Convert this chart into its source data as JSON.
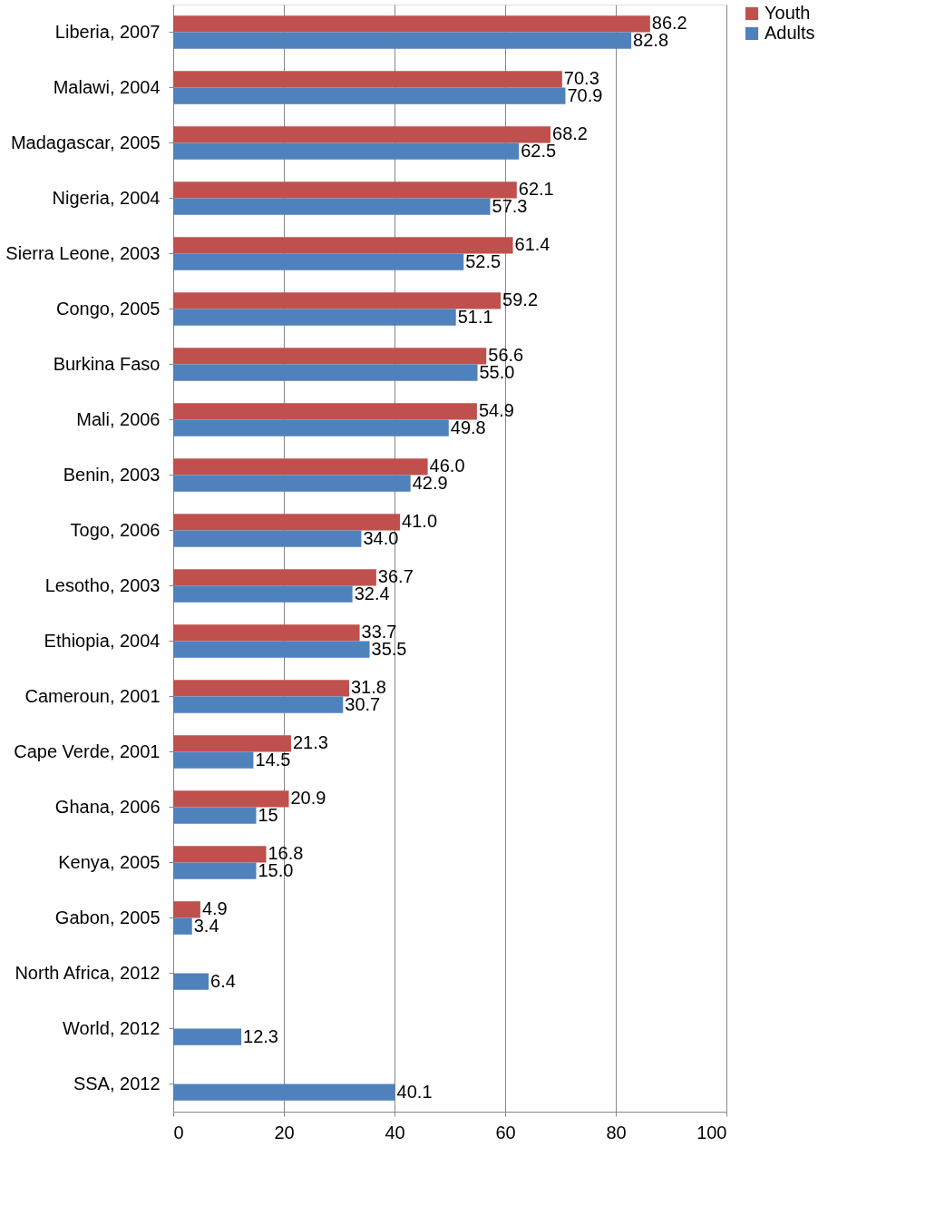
{
  "chart_data": {
    "type": "bar",
    "orientation": "horizontal",
    "categories": [
      "Liberia, 2007",
      "Malawi, 2004",
      "Madagascar, 2005",
      "Nigeria, 2004",
      "Sierra Leone, 2003",
      "Congo, 2005",
      "Burkina Faso",
      "Mali, 2006",
      "Benin, 2003",
      "Togo, 2006",
      "Lesotho, 2003",
      "Ethiopia, 2004",
      "Cameroun, 2001",
      "Cape Verde, 2001",
      "Ghana, 2006",
      "Kenya, 2005",
      "Gabon, 2005",
      "North Africa, 2012",
      "World, 2012",
      "SSA, 2012"
    ],
    "series": [
      {
        "name": "Youth",
        "color": "#c0504d",
        "values": [
          86.2,
          70.3,
          68.2,
          62.1,
          61.4,
          59.2,
          56.6,
          54.9,
          46.0,
          41.0,
          36.7,
          33.7,
          31.8,
          21.3,
          20.9,
          16.8,
          4.9,
          null,
          null,
          null
        ],
        "value_labels": [
          "86.2",
          "70.3",
          "68.2",
          "62.1",
          "61.4",
          "59.2",
          "56.6",
          "54.9",
          "46.0",
          "41.0",
          "36.7",
          "33.7",
          "31.8",
          "21.3",
          "20.9",
          "16.8",
          "4.9",
          null,
          null,
          null
        ]
      },
      {
        "name": "Adults",
        "color": "#4f81bd",
        "values": [
          82.8,
          70.9,
          62.5,
          57.3,
          52.5,
          51.1,
          55.0,
          49.8,
          42.9,
          34.0,
          32.4,
          35.5,
          30.7,
          14.5,
          15,
          15.0,
          3.4,
          6.4,
          12.3,
          40.1
        ],
        "value_labels": [
          "82.8",
          "70.9",
          "62.5",
          "57.3",
          "52.5",
          "51.1",
          "55.0",
          "49.8",
          "42.9",
          "34.0",
          "32.4",
          "35.5",
          "30.7",
          "14.5",
          "15",
          "15.0",
          "3.4",
          "6.4",
          "12.3",
          "40.1"
        ]
      }
    ],
    "xlim": [
      0,
      100
    ],
    "xticks": [
      0,
      20,
      40,
      60,
      80,
      100
    ],
    "grid": "x",
    "legend": "right"
  }
}
